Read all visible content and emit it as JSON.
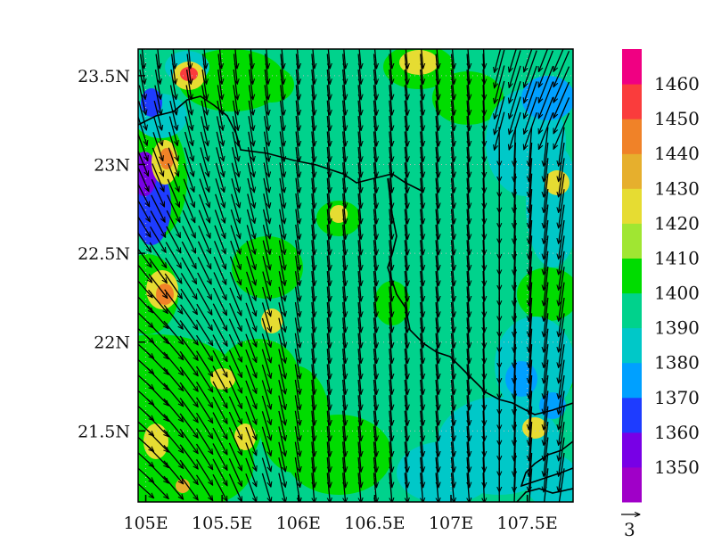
{
  "map": {
    "type": "contour-fill-with-wind-vectors",
    "lon_range": [
      104.95,
      107.8
    ],
    "lat_range": [
      21.1,
      23.65
    ],
    "x_ticks": [
      {
        "value": 105,
        "label": "105E"
      },
      {
        "value": 105.5,
        "label": "105.5E"
      },
      {
        "value": 106,
        "label": "106E"
      },
      {
        "value": 106.5,
        "label": "106.5E"
      },
      {
        "value": 107,
        "label": "107E"
      },
      {
        "value": 107.5,
        "label": "107.5E"
      }
    ],
    "y_ticks": [
      {
        "value": 23.5,
        "label": "23.5N"
      },
      {
        "value": 23,
        "label": "23N"
      },
      {
        "value": 22.5,
        "label": "22.5N"
      },
      {
        "value": 22,
        "label": "22N"
      },
      {
        "value": 21.5,
        "label": "21.5N"
      }
    ],
    "grid_lines": "dotted"
  },
  "colorbar": {
    "bins": [
      {
        "color": "#a000c8",
        "label": ""
      },
      {
        "color": "#7800e6",
        "label": "1350"
      },
      {
        "color": "#1e3cff",
        "label": "1360"
      },
      {
        "color": "#00a0ff",
        "label": "1370"
      },
      {
        "color": "#00c8c8",
        "label": "1380"
      },
      {
        "color": "#00d28c",
        "label": "1390"
      },
      {
        "color": "#00dc00",
        "label": "1400"
      },
      {
        "color": "#a0e632",
        "label": "1410"
      },
      {
        "color": "#e6dc32",
        "label": "1420"
      },
      {
        "color": "#e6af2d",
        "label": "1430"
      },
      {
        "color": "#f08228",
        "label": "1440"
      },
      {
        "color": "#fa3c3c",
        "label": "1450"
      },
      {
        "color": "#f00082",
        "label": "1460"
      }
    ]
  },
  "reference_vector": {
    "label": "3"
  }
}
